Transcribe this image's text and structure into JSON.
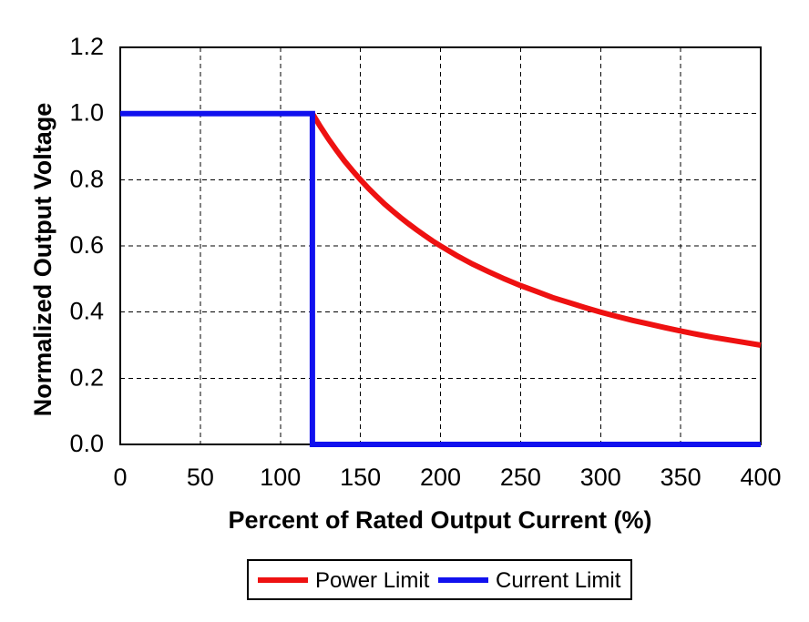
{
  "chart_data": {
    "type": "line",
    "title": "",
    "xlabel": "Percent of Rated Output Current (%)",
    "ylabel": "Normalized Output Voltage",
    "xlim": [
      0,
      400
    ],
    "ylim": [
      0,
      1.2
    ],
    "x_ticks": [
      0,
      50,
      100,
      150,
      200,
      250,
      300,
      350,
      400
    ],
    "x_tick_labels": [
      "0",
      "50",
      "100",
      "150",
      "200",
      "250",
      "300",
      "350",
      "400"
    ],
    "y_ticks": [
      0,
      0.2,
      0.4,
      0.6,
      0.8,
      1.0,
      1.2
    ],
    "y_tick_labels": [
      "0.0",
      "0.2",
      "0.4",
      "0.6",
      "0.8",
      "1.0",
      "1.2"
    ],
    "grid": {
      "vertical": true,
      "horizontal": true,
      "style": "dashed",
      "color": "#000000"
    },
    "plot_border": true,
    "background_color": "#ffffff",
    "legend_position": "bottom-center",
    "series": [
      {
        "name": "Power Limit",
        "color": "#ee1111",
        "relation": "y = 120 / x for x >= 120",
        "points": [
          [
            120,
            1.0
          ],
          [
            125,
            0.96
          ],
          [
            130,
            0.923
          ],
          [
            135,
            0.889
          ],
          [
            140,
            0.857
          ],
          [
            145,
            0.828
          ],
          [
            150,
            0.8
          ],
          [
            155,
            0.774
          ],
          [
            160,
            0.75
          ],
          [
            165,
            0.727
          ],
          [
            170,
            0.706
          ],
          [
            175,
            0.686
          ],
          [
            180,
            0.667
          ],
          [
            185,
            0.649
          ],
          [
            190,
            0.632
          ],
          [
            195,
            0.615
          ],
          [
            200,
            0.6
          ],
          [
            210,
            0.571
          ],
          [
            220,
            0.545
          ],
          [
            230,
            0.522
          ],
          [
            240,
            0.5
          ],
          [
            250,
            0.48
          ],
          [
            260,
            0.462
          ],
          [
            270,
            0.444
          ],
          [
            280,
            0.429
          ],
          [
            290,
            0.414
          ],
          [
            300,
            0.4
          ],
          [
            310,
            0.387
          ],
          [
            320,
            0.375
          ],
          [
            330,
            0.364
          ],
          [
            340,
            0.353
          ],
          [
            350,
            0.343
          ],
          [
            360,
            0.333
          ],
          [
            370,
            0.324
          ],
          [
            380,
            0.316
          ],
          [
            390,
            0.308
          ],
          [
            400,
            0.3
          ]
        ]
      },
      {
        "name": "Current Limit",
        "color": "#1111ee",
        "relation": "y = 1.0 for x <= 120, vertical drop at x = 120, y = 0 for x >= 120",
        "points": [
          [
            0,
            1.0
          ],
          [
            120,
            1.0
          ],
          [
            120,
            0.0
          ],
          [
            400,
            0.0
          ]
        ]
      }
    ]
  }
}
